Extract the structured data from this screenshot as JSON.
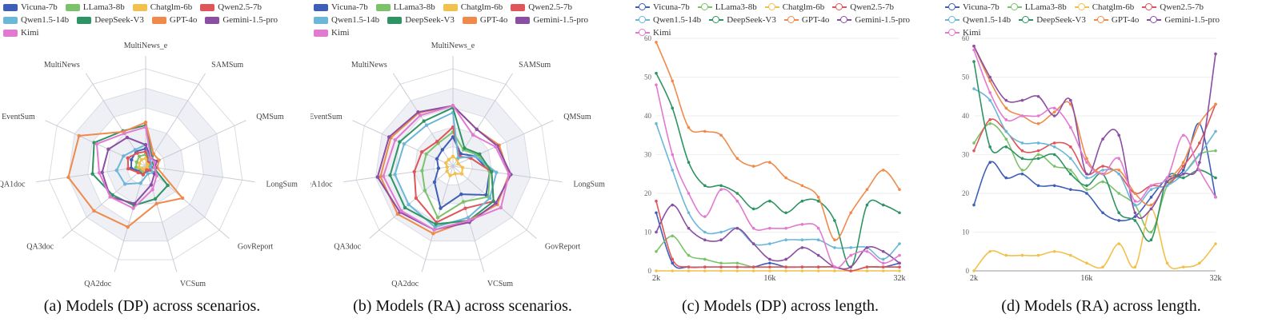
{
  "chart_data": [
    {
      "type": "radar",
      "caption": "(a) Models (DP) across scenarios.",
      "axes": [
        "MultiNews_e",
        "SAMSum",
        "QMSum",
        "LongSum",
        "GovReport",
        "VCSum",
        "QA2doc",
        "QA3doc",
        "QA1doc",
        "EventSum",
        "MultiNews"
      ],
      "rmax": 100,
      "series": [
        {
          "name": "Vicuna-7b",
          "values": [
            18,
            6,
            5,
            4,
            6,
            5,
            9,
            8,
            15,
            16,
            18
          ]
        },
        {
          "name": "LLama3-8b",
          "values": [
            12,
            5,
            4,
            3,
            4,
            3,
            6,
            6,
            10,
            10,
            12
          ]
        },
        {
          "name": "Chatglm-6b",
          "values": [
            8,
            3,
            3,
            2,
            3,
            2,
            4,
            4,
            7,
            7,
            8
          ]
        },
        {
          "name": "Qwen2.5-7b",
          "values": [
            15,
            6,
            6,
            5,
            6,
            4,
            9,
            10,
            18,
            20,
            16
          ]
        },
        {
          "name": "Qwen1.5-14b",
          "values": [
            22,
            8,
            7,
            5,
            10,
            8,
            18,
            28,
            30,
            25,
            20
          ]
        },
        {
          "name": "DeepSeek-V3",
          "values": [
            42,
            12,
            9,
            8,
            30,
            35,
            42,
            45,
            55,
            58,
            43
          ]
        },
        {
          "name": "GPT-4o",
          "values": [
            45,
            15,
            15,
            12,
            50,
            40,
            65,
            70,
            80,
            75,
            42
          ]
        },
        {
          "name": "Gemini-1.5-pro",
          "values": [
            22,
            10,
            12,
            10,
            12,
            20,
            40,
            48,
            45,
            42,
            35
          ]
        },
        {
          "name": "Kimi",
          "values": [
            40,
            10,
            10,
            9,
            15,
            25,
            45,
            48,
            48,
            55,
            40
          ]
        }
      ]
    },
    {
      "type": "radar",
      "caption": "(b) Models (RA) across scenarios.",
      "axes": [
        "MultiNews_e",
        "SAMSum",
        "QMSum",
        "LongSum",
        "GovReport",
        "VCSum",
        "QA2doc",
        "QA3doc",
        "QA1doc",
        "EventSum",
        "MultiNews"
      ],
      "rmax": 100,
      "series": [
        {
          "name": "Vicuna-7b",
          "values": [
            30,
            15,
            25,
            38,
            45,
            30,
            45,
            25,
            15,
            18,
            20
          ]
        },
        {
          "name": "LLama3-8b",
          "values": [
            35,
            20,
            28,
            38,
            48,
            38,
            55,
            38,
            32,
            30,
            28
          ]
        },
        {
          "name": "Chatglm-6b",
          "values": [
            10,
            8,
            6,
            10,
            12,
            8,
            10,
            8,
            6,
            8,
            8
          ]
        },
        {
          "name": "Qwen2.5-7b",
          "values": [
            40,
            12,
            20,
            40,
            55,
            45,
            60,
            50,
            40,
            35,
            30
          ]
        },
        {
          "name": "Qwen1.5-14b",
          "values": [
            55,
            10,
            25,
            45,
            50,
            55,
            65,
            60,
            60,
            55,
            50
          ]
        },
        {
          "name": "DeepSeek-V3",
          "values": [
            60,
            22,
            30,
            40,
            55,
            58,
            62,
            65,
            65,
            60,
            55
          ]
        },
        {
          "name": "GPT-4o",
          "values": [
            62,
            45,
            52,
            58,
            60,
            58,
            72,
            75,
            75,
            70,
            65
          ]
        },
        {
          "name": "Gemini-1.5-pro",
          "values": [
            62,
            45,
            50,
            60,
            58,
            60,
            68,
            72,
            78,
            72,
            66
          ]
        },
        {
          "name": "Kimi",
          "values": [
            62,
            38,
            48,
            58,
            65,
            58,
            68,
            70,
            72,
            65,
            62
          ]
        }
      ]
    },
    {
      "type": "line",
      "caption": "(c) Models (DP) across length.",
      "x": [
        2,
        4,
        6,
        8,
        10,
        12,
        14,
        16,
        18,
        20,
        22,
        24,
        26,
        28,
        30,
        32
      ],
      "xticks": [
        {
          "v": 2,
          "label": "2k"
        },
        {
          "v": 16,
          "label": "16k"
        },
        {
          "v": 32,
          "label": "32k"
        }
      ],
      "ylim": [
        0,
        60
      ],
      "yticks": [
        0,
        10,
        20,
        30,
        40,
        50,
        60
      ],
      "series": [
        {
          "name": "Vicuna-7b",
          "values": [
            15,
            2,
            1,
            1,
            1,
            1,
            1,
            2,
            1,
            1,
            1,
            1,
            0,
            1,
            1,
            2
          ]
        },
        {
          "name": "LLama3-8b",
          "values": [
            5,
            9,
            4,
            3,
            2,
            2,
            1,
            1,
            1,
            1,
            1,
            1,
            0,
            1,
            1,
            1
          ]
        },
        {
          "name": "Chatglm-6b",
          "values": [
            0,
            0,
            0,
            0,
            0,
            0,
            0,
            0,
            0,
            0,
            0,
            0,
            0,
            0,
            0,
            0
          ]
        },
        {
          "name": "Qwen2.5-7b",
          "values": [
            18,
            3,
            1,
            1,
            1,
            1,
            1,
            1,
            1,
            1,
            1,
            1,
            0,
            1,
            1,
            1
          ]
        },
        {
          "name": "Qwen1.5-14b",
          "values": [
            38,
            26,
            15,
            10,
            10,
            11,
            7,
            7,
            8,
            8,
            8,
            6,
            6,
            6,
            3,
            7
          ]
        },
        {
          "name": "DeepSeek-V3",
          "values": [
            51,
            42,
            28,
            22,
            22,
            20,
            16,
            18,
            15,
            18,
            18,
            13,
            1,
            17,
            17,
            15
          ]
        },
        {
          "name": "GPT-4o",
          "values": [
            59,
            49,
            37,
            36,
            35,
            29,
            27,
            28,
            24,
            22,
            19,
            8,
            15,
            21,
            26,
            21
          ]
        },
        {
          "name": "Gemini-1.5-pro",
          "values": [
            10,
            17,
            11,
            8,
            8,
            11,
            7,
            3,
            3,
            6,
            4,
            1,
            1,
            6,
            5,
            2
          ]
        },
        {
          "name": "Kimi",
          "values": [
            48,
            30,
            20,
            14,
            21,
            18,
            11,
            11,
            11,
            12,
            11,
            1,
            4,
            5,
            2,
            4
          ]
        }
      ]
    },
    {
      "type": "line",
      "caption": "(d) Models (RA) across length.",
      "x": [
        2,
        4,
        6,
        8,
        10,
        12,
        14,
        16,
        18,
        20,
        22,
        24,
        26,
        28,
        30,
        32
      ],
      "xticks": [
        {
          "v": 2,
          "label": "2k"
        },
        {
          "v": 16,
          "label": "16k"
        },
        {
          "v": 32,
          "label": "32k"
        }
      ],
      "ylim": [
        0,
        60
      ],
      "yticks": [
        0,
        10,
        20,
        30,
        40,
        50,
        60
      ],
      "series": [
        {
          "name": "Vicuna-7b",
          "values": [
            17,
            28,
            24,
            25,
            22,
            22,
            21,
            20,
            15,
            13,
            14,
            19,
            24,
            26,
            38,
            19
          ]
        },
        {
          "name": "LLama3-8b",
          "values": [
            33,
            38,
            34,
            26,
            30,
            27,
            26,
            21,
            23,
            20,
            17,
            10,
            22,
            25,
            30,
            31
          ]
        },
        {
          "name": "Chatglm-6b",
          "values": [
            0,
            5,
            4,
            4,
            4,
            5,
            4,
            2,
            1,
            7,
            1,
            16,
            2,
            1,
            2,
            7
          ]
        },
        {
          "name": "Qwen2.5-7b",
          "values": [
            31,
            39,
            36,
            31,
            31,
            33,
            32,
            25,
            27,
            25,
            20,
            22,
            22,
            27,
            33,
            43
          ]
        },
        {
          "name": "Qwen1.5-14b",
          "values": [
            47,
            44,
            36,
            33,
            33,
            32,
            29,
            24,
            26,
            25,
            17,
            21,
            22,
            25,
            30,
            36
          ]
        },
        {
          "name": "DeepSeek-V3",
          "values": [
            54,
            32,
            32,
            29,
            29,
            30,
            25,
            22,
            25,
            15,
            13,
            8,
            24,
            24,
            26,
            24
          ]
        },
        {
          "name": "GPT-4o",
          "values": [
            58,
            49,
            42,
            40,
            38,
            41,
            43,
            29,
            25,
            26,
            20,
            17,
            23,
            28,
            38,
            43
          ]
        },
        {
          "name": "Gemini-1.5-pro",
          "values": [
            58,
            50,
            44,
            44,
            45,
            40,
            44,
            25,
            34,
            35,
            15,
            16,
            23,
            25,
            28,
            56
          ]
        },
        {
          "name": "Kimi",
          "values": [
            57,
            46,
            39,
            40,
            40,
            42,
            37,
            28,
            25,
            29,
            18,
            22,
            24,
            35,
            26,
            19
          ]
        }
      ]
    }
  ],
  "legend_colors": {
    "Vicuna-7b": "#3e5fb8",
    "LLama3-8b": "#7bc36b",
    "Chatglm-6b": "#f2c14b",
    "Qwen2.5-7b": "#e0555a",
    "Qwen1.5-14b": "#6bb7d9",
    "DeepSeek-V3": "#2f9463",
    "GPT-4o": "#f08a4b",
    "Gemini-1.5-pro": "#8a4ea3",
    "Kimi": "#e27ad1"
  }
}
